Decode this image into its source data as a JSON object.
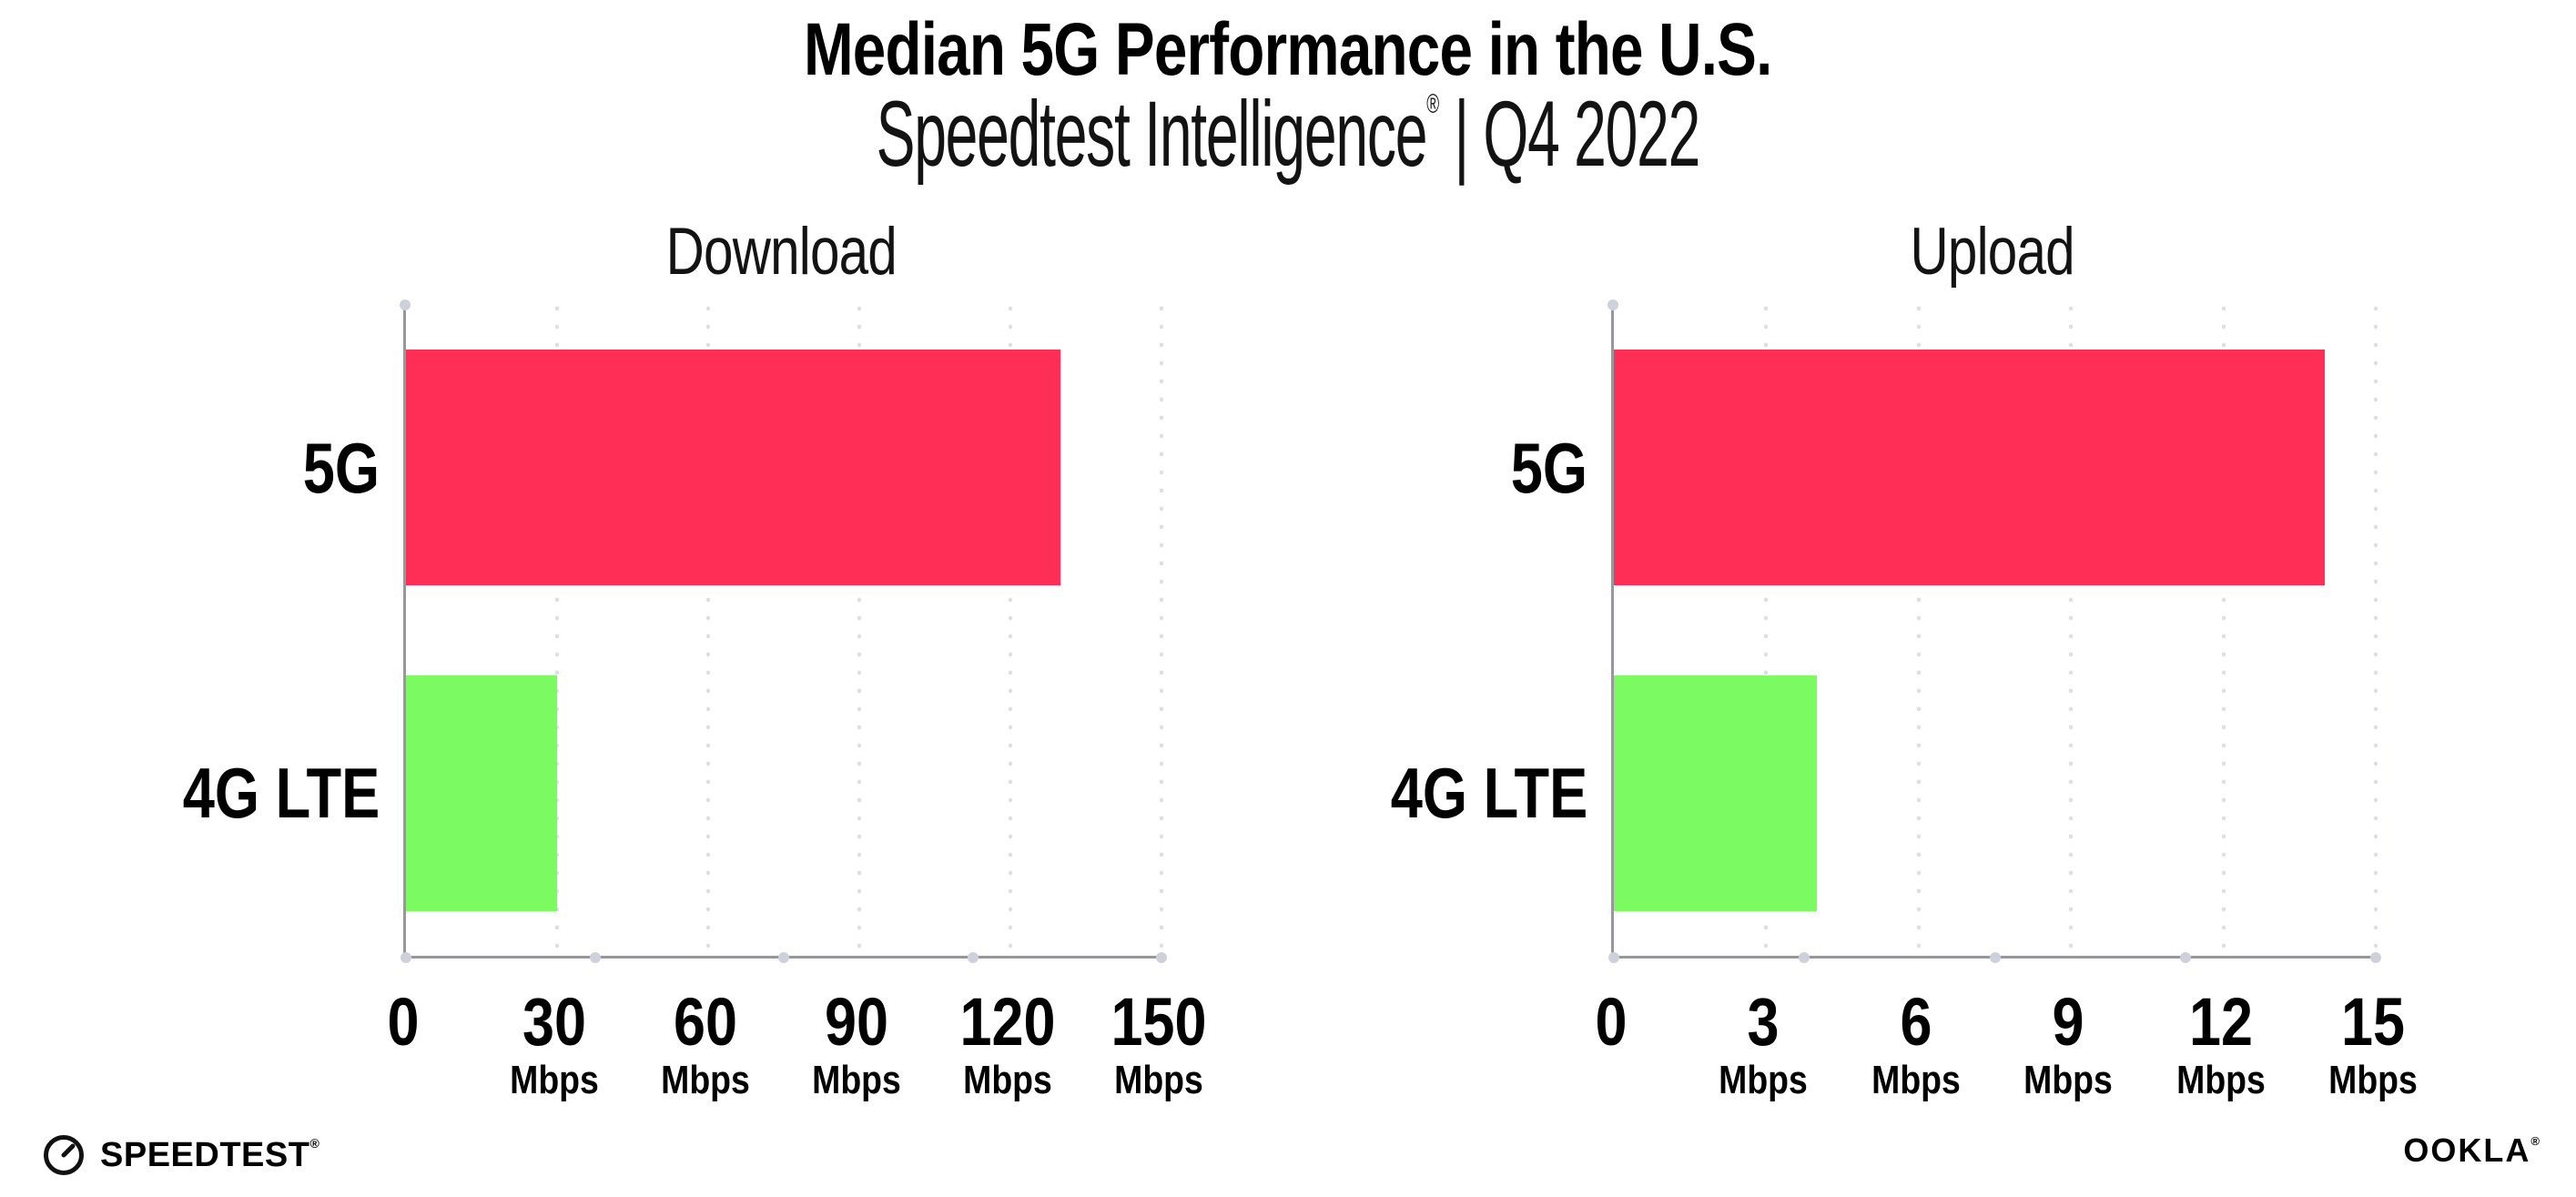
{
  "header": {
    "title": "Median 5G Performance in the U.S.",
    "subtitle": {
      "brand": "Speedtest Intelligence",
      "brand_mark": "®",
      "divider": "|",
      "period": "Q4 2022"
    }
  },
  "chart_data": [
    {
      "type": "bar",
      "orientation": "horizontal",
      "title": "Download",
      "categories": [
        "5G",
        "4G LTE"
      ],
      "values": [
        130,
        30
      ],
      "unit": "Mbps",
      "xlim": [
        0,
        150
      ],
      "xticks": [
        0,
        30,
        60,
        90,
        120,
        150
      ],
      "unit_shown_on_zero_tick": false,
      "bar_colors": [
        "#FF2E56",
        "#7BFA61"
      ],
      "grid": "dotted-vertical",
      "legend": "none"
    },
    {
      "type": "bar",
      "orientation": "horizontal",
      "title": "Upload",
      "categories": [
        "5G",
        "4G LTE"
      ],
      "values": [
        14,
        4
      ],
      "unit": "Mbps",
      "xlim": [
        0,
        15
      ],
      "xticks": [
        0,
        3,
        6,
        9,
        12,
        15
      ],
      "unit_shown_on_zero_tick": false,
      "bar_colors": [
        "#FF2E56",
        "#7BFA61"
      ],
      "grid": "dotted-vertical",
      "legend": "none"
    }
  ],
  "footer": {
    "speedtest": {
      "label": "SPEEDTEST",
      "mark": "®",
      "icon": "gauge-icon"
    },
    "ookla": {
      "label": "OOKLA",
      "mark": "®"
    }
  },
  "colors": {
    "background": "#FFFFFF",
    "text": "#000000",
    "bar_5g": "#FF2E56",
    "bar_4g_lte": "#7BFA61",
    "axis_line": "#97979C",
    "axis_dot": "#CDD1DC",
    "gridline_dot": "#DCDEE8"
  }
}
